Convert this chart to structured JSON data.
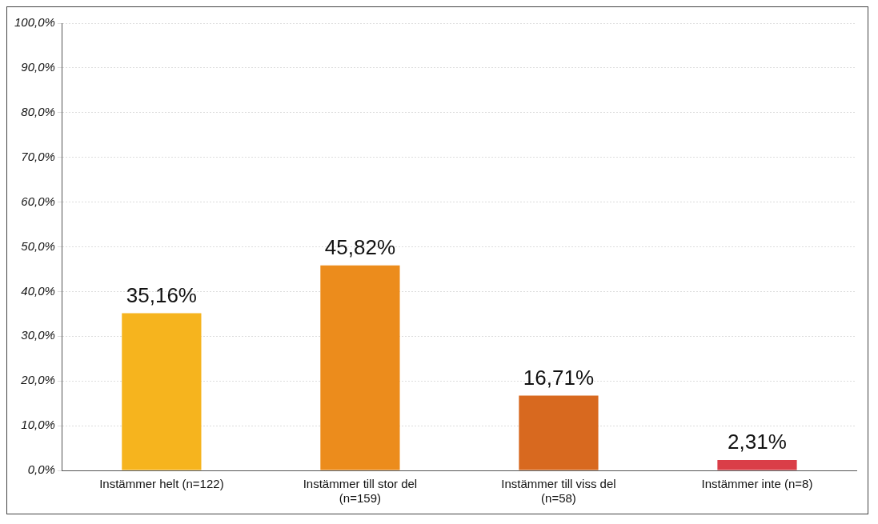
{
  "chart_data": {
    "type": "bar",
    "categories": [
      "Instämmer helt (n=122)",
      "Instämmer till stor del (n=159)",
      "Instämmer till viss del (n=58)",
      "Instämmer inte (n=8)"
    ],
    "values": [
      35.16,
      45.82,
      16.71,
      2.31
    ],
    "colors": [
      "#f6b41e",
      "#ec8c1c",
      "#d8691f",
      "#da3e48"
    ],
    "value_labels": [
      "35,16%",
      "45,82%",
      "16,71%",
      "2,31%"
    ],
    "ylim": [
      0,
      100
    ],
    "yticks": [
      {
        "value": 0,
        "label": "0,0%"
      },
      {
        "value": 10,
        "label": "10,0%"
      },
      {
        "value": 20,
        "label": "20,0%"
      },
      {
        "value": 30,
        "label": "30,0%"
      },
      {
        "value": 40,
        "label": "40,0%"
      },
      {
        "value": 50,
        "label": "50,0%"
      },
      {
        "value": 60,
        "label": "60,0%"
      },
      {
        "value": 70,
        "label": "70,0%"
      },
      {
        "value": 80,
        "label": "80,0%"
      },
      {
        "value": 90,
        "label": "90,0%"
      },
      {
        "value": 100,
        "label": "100,0%"
      }
    ],
    "grid": "y",
    "legend": false
  }
}
